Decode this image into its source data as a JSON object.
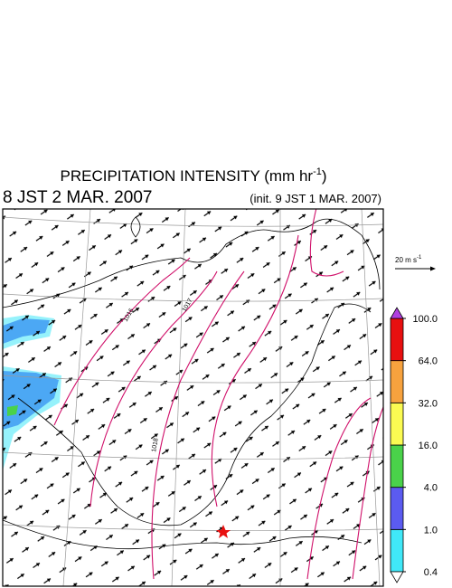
{
  "header": {
    "title": "PRECIPITATION INTENSITY (mm hr",
    "title_sup": "-1",
    "title_end": ")",
    "valid_time": "8 JST 2 MAR. 2007",
    "init_time": "(init. 9 JST 1 MAR. 2007)"
  },
  "vector_scale": {
    "label": "20 m s",
    "label_sup": "-1"
  },
  "isobars": {
    "labels": [
      "1016",
      "1017",
      "1018"
    ]
  },
  "colorbar": {
    "levels": [
      0.4,
      {
        "value": 1,
        "label": "1.0"
      },
      {
        "value": 4,
        "label": "4.0"
      },
      {
        "value": 16,
        "label": "16.0"
      },
      {
        "value": 32,
        "label": "32.0"
      },
      {
        "value": 64,
        "label": "64.0"
      },
      {
        "value": 100,
        "label": "100.0"
      }
    ],
    "colors": [
      "#40e8f8",
      "#5b5bf0",
      "#4ad24a",
      "#fbfb52",
      "#f7a23e",
      "#e81010"
    ],
    "over_color": "#b040e0",
    "under_color": "#ffffff"
  }
}
